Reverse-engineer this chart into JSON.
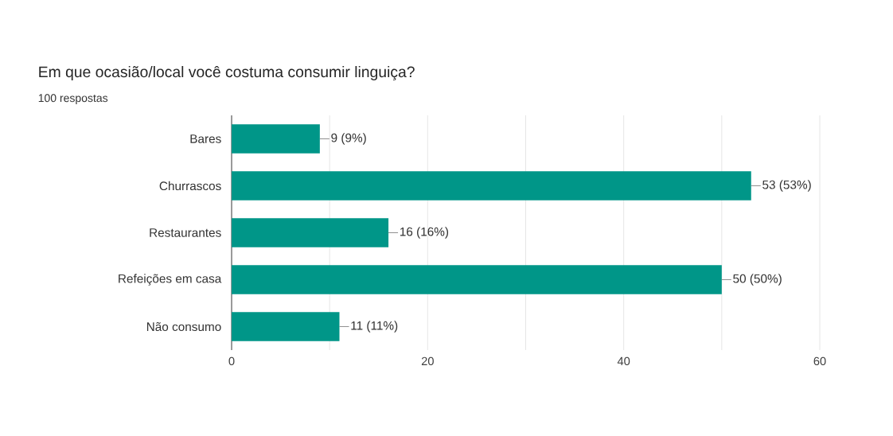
{
  "chart_data": {
    "type": "bar",
    "orientation": "horizontal",
    "title": "Em que ocasião/local você costuma consumir linguiça?",
    "subtitle": "100 respostas",
    "categories": [
      "Bares",
      "Churrascos",
      "Restaurantes",
      "Refeições em casa",
      "Não consumo"
    ],
    "values": [
      9,
      53,
      16,
      50,
      11
    ],
    "value_labels": [
      "9 (9%)",
      "53 (53%)",
      "16 (16%)",
      "50 (50%)",
      "11 (11%)"
    ],
    "color": "#009688",
    "xlim": [
      0,
      60
    ],
    "xticks": [
      0,
      {
        "value": 10,
        "label": null
      },
      20,
      {
        "value": 30,
        "label": null
      },
      40,
      {
        "value": 50,
        "label": null
      },
      60
    ],
    "grid": "x"
  }
}
